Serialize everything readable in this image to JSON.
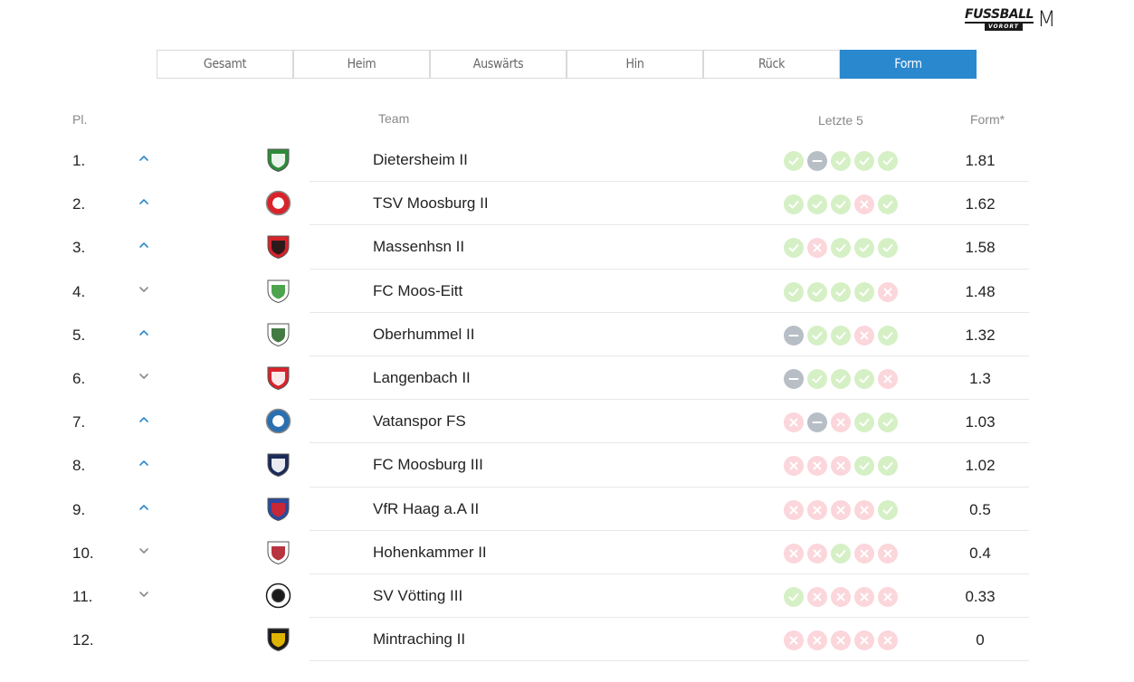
{
  "brand": {
    "main": "FUSSBALL",
    "sub": "VORORT",
    "mark": "M"
  },
  "tabs": [
    {
      "label": "Gesamt",
      "active": false
    },
    {
      "label": "Heim",
      "active": false
    },
    {
      "label": "Auswärts",
      "active": false
    },
    {
      "label": "Hin",
      "active": false
    },
    {
      "label": "Rück",
      "active": false
    },
    {
      "label": "Form",
      "active": true
    }
  ],
  "headers": {
    "place": "Pl.",
    "team": "Team",
    "last5": "Letzte 5",
    "form": "Form*"
  },
  "colors": {
    "accent": "#2a88cf",
    "win": "#d6f0c6",
    "loss": "#fbd6db",
    "draw": "#b8bec6"
  },
  "rows": [
    {
      "rank": "1.",
      "trend": "up",
      "team": "Dietersheim II",
      "crest": {
        "type": "shield",
        "c1": "#2e8b3a",
        "c2": "#ffffff"
      },
      "last5": [
        "w",
        "d",
        "w",
        "w",
        "w"
      ],
      "form": "1.81"
    },
    {
      "rank": "2.",
      "trend": "up",
      "team": "TSV Moosburg II",
      "crest": {
        "type": "round",
        "c1": "#d8232a",
        "c2": "#ffffff"
      },
      "last5": [
        "w",
        "w",
        "w",
        "l",
        "w"
      ],
      "form": "1.62"
    },
    {
      "rank": "3.",
      "trend": "up",
      "team": "Massenhsn II",
      "crest": {
        "type": "shield",
        "c1": "#d8232a",
        "c2": "#1a1a1a"
      },
      "last5": [
        "w",
        "l",
        "w",
        "w",
        "w"
      ],
      "form": "1.58"
    },
    {
      "rank": "4.",
      "trend": "down",
      "team": "FC Moos-Eitt",
      "crest": {
        "type": "shield",
        "c1": "#ffffff",
        "c2": "#3a9a3a"
      },
      "last5": [
        "w",
        "w",
        "w",
        "w",
        "l"
      ],
      "form": "1.48"
    },
    {
      "rank": "5.",
      "trend": "up",
      "team": "Oberhummel II",
      "crest": {
        "type": "shield",
        "c1": "#ffffff",
        "c2": "#2e6b2e"
      },
      "last5": [
        "d",
        "w",
        "w",
        "l",
        "w"
      ],
      "form": "1.32"
    },
    {
      "rank": "6.",
      "trend": "down",
      "team": "Langenbach II",
      "crest": {
        "type": "shield",
        "c1": "#d8232a",
        "c2": "#ffffff"
      },
      "last5": [
        "d",
        "w",
        "w",
        "w",
        "l"
      ],
      "form": "1.3"
    },
    {
      "rank": "7.",
      "trend": "up",
      "team": "Vatanspor FS",
      "crest": {
        "type": "round",
        "c1": "#2a6fb0",
        "c2": "#ffffff"
      },
      "last5": [
        "l",
        "d",
        "l",
        "w",
        "w"
      ],
      "form": "1.03"
    },
    {
      "rank": "8.",
      "trend": "up",
      "team": "FC Moosburg III",
      "crest": {
        "type": "shield",
        "c1": "#1a2a5a",
        "c2": "#ffffff"
      },
      "last5": [
        "l",
        "l",
        "l",
        "w",
        "w"
      ],
      "form": "1.02"
    },
    {
      "rank": "9.",
      "trend": "up",
      "team": "VfR Haag a.A II",
      "crest": {
        "type": "shield",
        "c1": "#2a4aa0",
        "c2": "#d8232a"
      },
      "last5": [
        "l",
        "l",
        "l",
        "l",
        "w"
      ],
      "form": "0.5"
    },
    {
      "rank": "10.",
      "trend": "down",
      "team": "Hohenkammer II",
      "crest": {
        "type": "shield",
        "c1": "#ffffff",
        "c2": "#b01e2a"
      },
      "last5": [
        "l",
        "l",
        "w",
        "l",
        "l"
      ],
      "form": "0.4"
    },
    {
      "rank": "11.",
      "trend": "down",
      "team": "SV Vötting III",
      "crest": {
        "type": "round",
        "c1": "#ffffff",
        "c2": "#1a1a1a"
      },
      "last5": [
        "w",
        "l",
        "l",
        "l",
        "l"
      ],
      "form": "0.33"
    },
    {
      "rank": "12.",
      "trend": "none",
      "team": "Mintraching II",
      "crest": {
        "type": "shield",
        "c1": "#1a1a1a",
        "c2": "#f5c400"
      },
      "last5": [
        "l",
        "l",
        "l",
        "l",
        "l"
      ],
      "form": "0"
    }
  ]
}
